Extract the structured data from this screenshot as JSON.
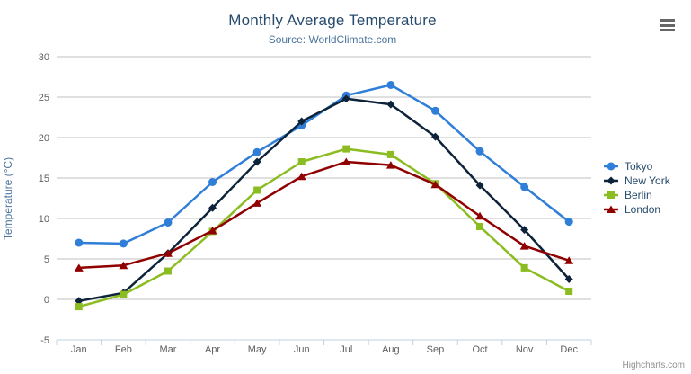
{
  "header": {
    "title": "Monthly Average Temperature",
    "subtitle": "Source: WorldClimate.com"
  },
  "credit_label": "Highcharts.com",
  "export_menu_icon": "hamburger-icon",
  "colors": {
    "title": "#274b6d",
    "subtitle": "#4d759e",
    "axis_title": "#4d759e",
    "tick_label": "#606060",
    "gridline": "#c0c0c0",
    "axis_line": "#c0d0e0",
    "legend_text": "#274b6d",
    "credit": "#909090",
    "background": "#ffffff"
  },
  "chart_data": {
    "type": "line",
    "title": "Monthly Average Temperature",
    "subtitle": "Source: WorldClimate.com",
    "xlabel": "",
    "ylabel": "Temperature (°C)",
    "categories": [
      "Jan",
      "Feb",
      "Mar",
      "Apr",
      "May",
      "Jun",
      "Jul",
      "Aug",
      "Sep",
      "Oct",
      "Nov",
      "Dec"
    ],
    "ylim": [
      -5,
      30
    ],
    "ytick_interval": 5,
    "yticks": [
      -5,
      0,
      5,
      10,
      15,
      20,
      25,
      30
    ],
    "grid": true,
    "legend_position": "right",
    "series": [
      {
        "name": "Tokyo",
        "color": "#2f7ed8",
        "marker": "circle",
        "values": [
          7.0,
          6.9,
          9.5,
          14.5,
          18.2,
          21.5,
          25.2,
          26.5,
          23.3,
          18.3,
          13.9,
          9.6
        ]
      },
      {
        "name": "New York",
        "color": "#0d233a",
        "marker": "diamond",
        "values": [
          -0.2,
          0.8,
          5.7,
          11.3,
          17.0,
          22.0,
          24.8,
          24.1,
          20.1,
          14.1,
          8.6,
          2.5
        ]
      },
      {
        "name": "Berlin",
        "color": "#8bbc21",
        "marker": "square",
        "values": [
          -0.9,
          0.6,
          3.5,
          8.4,
          13.5,
          17.0,
          18.6,
          17.9,
          14.3,
          9.0,
          3.9,
          1.0
        ]
      },
      {
        "name": "London",
        "color": "#910000",
        "marker": "triangle",
        "values": [
          3.9,
          4.2,
          5.7,
          8.5,
          11.9,
          15.2,
          17.0,
          16.6,
          14.2,
          10.3,
          6.6,
          4.8
        ]
      }
    ]
  }
}
